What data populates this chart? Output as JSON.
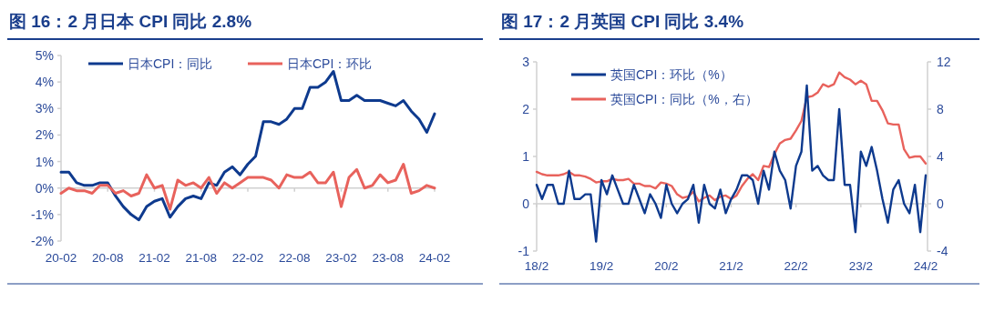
{
  "chart_data": [
    {
      "type": "line",
      "title": "图 16：2 月日本 CPI 同比 2.8%",
      "legend": "top",
      "categories": [
        "20-02",
        null,
        null,
        null,
        null,
        null,
        "20-08",
        null,
        null,
        null,
        null,
        null,
        "21-02",
        null,
        null,
        null,
        null,
        null,
        "21-08",
        null,
        null,
        null,
        null,
        null,
        "22-02",
        null,
        null,
        null,
        null,
        null,
        "22-08",
        null,
        null,
        null,
        null,
        null,
        "23-02",
        null,
        null,
        null,
        null,
        null,
        "23-08",
        null,
        null,
        null,
        null,
        null,
        "24-02"
      ],
      "ylim": [
        -2,
        5
      ],
      "yticks": [
        {
          "value": -2,
          "label": "-2%"
        },
        {
          "value": -1,
          "label": "-1%"
        },
        {
          "value": 0,
          "label": "0%"
        },
        {
          "value": 1,
          "label": "1%"
        },
        {
          "value": 2,
          "label": "2%"
        },
        {
          "value": 3,
          "label": "3%"
        },
        {
          "value": 4,
          "label": "4%"
        },
        {
          "value": 5,
          "label": "5%"
        }
      ],
      "series": [
        {
          "name": "日本CPI：同比",
          "color": "#0e3a8e",
          "values": [
            0.6,
            0.6,
            0.2,
            0.1,
            0.1,
            0.2,
            0.2,
            -0.3,
            -0.7,
            -1.0,
            -1.2,
            -0.7,
            -0.5,
            -0.4,
            -1.1,
            -0.7,
            -0.4,
            -0.3,
            -0.4,
            0.2,
            0.1,
            0.6,
            0.8,
            0.5,
            0.9,
            1.2,
            2.5,
            2.5,
            2.4,
            2.6,
            3.0,
            3.0,
            3.8,
            3.8,
            4.0,
            4.4,
            3.3,
            3.3,
            3.5,
            3.3,
            3.3,
            3.3,
            3.2,
            3.1,
            3.3,
            2.9,
            2.6,
            2.1,
            2.8
          ]
        },
        {
          "name": "日本CPI：环比",
          "color": "#e8625c",
          "values": [
            -0.2,
            0.0,
            -0.1,
            -0.1,
            -0.2,
            0.1,
            0.1,
            -0.2,
            -0.1,
            -0.3,
            -0.2,
            0.5,
            0.0,
            0.1,
            -0.8,
            0.3,
            0.1,
            0.2,
            0.0,
            0.4,
            -0.2,
            0.2,
            0.0,
            0.2,
            0.4,
            0.4,
            0.4,
            0.3,
            0.0,
            0.5,
            0.4,
            0.4,
            0.6,
            0.2,
            0.2,
            0.6,
            -0.7,
            0.4,
            0.7,
            0.0,
            0.1,
            0.5,
            0.2,
            0.3,
            0.9,
            -0.2,
            -0.1,
            0.1,
            0.0
          ]
        }
      ]
    },
    {
      "type": "line",
      "title": "图 17：2 月英国 CPI 同比 3.4%",
      "legend": "top left",
      "categories": [
        "18/2",
        null,
        null,
        null,
        null,
        null,
        null,
        null,
        null,
        null,
        null,
        null,
        "19/2",
        null,
        null,
        null,
        null,
        null,
        null,
        null,
        null,
        null,
        null,
        null,
        "20/2",
        null,
        null,
        null,
        null,
        null,
        null,
        null,
        null,
        null,
        null,
        null,
        "21/2",
        null,
        null,
        null,
        null,
        null,
        null,
        null,
        null,
        null,
        null,
        null,
        "22/2",
        null,
        null,
        null,
        null,
        null,
        null,
        null,
        null,
        null,
        null,
        null,
        "23/2",
        null,
        null,
        null,
        null,
        null,
        null,
        null,
        null,
        null,
        null,
        null,
        "24/2"
      ],
      "ylim": [
        -1,
        3
      ],
      "yticks": [
        -1,
        0,
        1,
        2,
        3
      ],
      "y2lim": [
        -4,
        12
      ],
      "y2ticks": [
        -4,
        0,
        4,
        8,
        12
      ],
      "series": [
        {
          "name": "英国CPI：环比（%）",
          "color": "#0e3a8e",
          "values": [
            0.4,
            0.1,
            0.4,
            0.4,
            0.0,
            0.0,
            0.7,
            0.1,
            0.1,
            0.2,
            0.2,
            -0.8,
            0.5,
            0.2,
            0.6,
            0.3,
            0.0,
            0.0,
            0.4,
            0.1,
            -0.2,
            0.2,
            0.0,
            -0.3,
            0.4,
            0.0,
            -0.2,
            0.0,
            0.1,
            0.4,
            -0.4,
            0.4,
            0.0,
            -0.1,
            0.3,
            -0.2,
            0.1,
            0.3,
            0.6,
            0.6,
            0.5,
            0.0,
            0.7,
            0.3,
            1.1,
            0.7,
            0.5,
            -0.1,
            0.8,
            1.1,
            2.5,
            0.7,
            0.8,
            0.6,
            0.5,
            0.5,
            2.0,
            0.4,
            0.4,
            -0.6,
            1.1,
            0.8,
            1.2,
            0.7,
            0.1,
            -0.4,
            0.3,
            0.5,
            0.0,
            -0.2,
            0.4,
            -0.6,
            0.6
          ]
        },
        {
          "name": "英国CPI：同比（%，右）",
          "color": "#e8625c",
          "axis": "y2",
          "values": [
            2.7,
            2.5,
            2.4,
            2.4,
            2.4,
            2.5,
            2.7,
            2.4,
            2.4,
            2.3,
            2.1,
            1.8,
            1.9,
            1.9,
            2.1,
            2.0,
            2.0,
            2.1,
            1.7,
            1.7,
            1.5,
            1.5,
            1.3,
            1.8,
            1.7,
            1.5,
            0.8,
            0.5,
            0.6,
            1.0,
            0.2,
            0.5,
            0.7,
            0.3,
            0.6,
            0.7,
            0.4,
            0.7,
            1.5,
            2.1,
            2.5,
            2.0,
            3.2,
            3.1,
            4.2,
            5.1,
            5.4,
            5.5,
            6.2,
            7.0,
            9.0,
            9.1,
            9.4,
            10.1,
            9.9,
            10.1,
            11.1,
            10.7,
            10.5,
            10.1,
            10.4,
            10.1,
            8.7,
            8.7,
            7.9,
            6.8,
            6.7,
            6.7,
            4.6,
            3.9,
            4.0,
            4.0,
            3.4
          ]
        }
      ]
    }
  ]
}
